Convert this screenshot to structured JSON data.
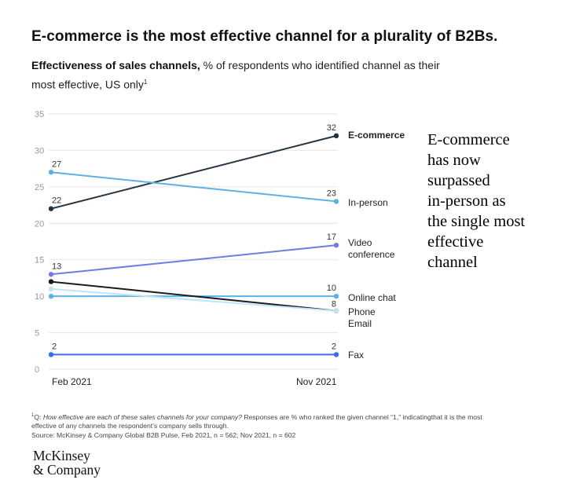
{
  "title": "E-commerce is the most effective channel for a plurality of B2Bs.",
  "subtitle": {
    "bold": "Effectiveness of sales channels,",
    "rest": " % of respondents who identified channel as their most effective, US only",
    "note_marker": "1"
  },
  "callout": {
    "lines": [
      "E-commerce",
      "has now",
      "surpassed",
      "in-person as",
      "the single most",
      "effective",
      "channel"
    ]
  },
  "footnote": {
    "marker": "1",
    "q_prefix": "Q: ",
    "question": "How effective are each of these sales channels for your company?",
    "line1_rest": " Responses are % who ranked the given channel “1,” indicatingthat it is the most",
    "line2": "effective of any channels the respondent’s company sells through.",
    "source": "Source: McKinsey & Company Global B2B Pulse, Feb 2021, n = 562; Nov 2021, n = 602"
  },
  "logo": {
    "line1": "McKinsey",
    "line2": "& Company"
  },
  "colors": {
    "axis_text": "#999999",
    "grid": "#e6e6e6",
    "e_commerce": "#243340",
    "in_person": "#5fb2e0",
    "video_conference": "#6c7fe0",
    "online_chat": "#5ab3e6",
    "phone": "#1b1b1b",
    "email": "#bfe3f7",
    "fax": "#3d6ee6"
  },
  "chart_data": {
    "type": "line",
    "title": "Effectiveness of sales channels, % of respondents who identified channel as their most effective, US only",
    "xlabel": "",
    "ylabel": "",
    "x": [
      "Feb 2021",
      "Nov 2021"
    ],
    "ylim": [
      0,
      35
    ],
    "yticks": [
      0,
      5,
      10,
      15,
      20,
      25,
      30,
      35
    ],
    "grid": true,
    "legend": "end-of-line labels on the right",
    "series": [
      {
        "name": "E-commerce",
        "values": [
          22,
          32
        ],
        "color": "#243340",
        "start_label": "22",
        "end_label": "32",
        "bold": true
      },
      {
        "name": "In-person",
        "values": [
          27,
          23
        ],
        "color": "#5fb2e0",
        "start_label": "27",
        "end_label": "23"
      },
      {
        "name": "Video conference",
        "values": [
          13,
          17
        ],
        "color": "#6c7fe0",
        "start_label": "13",
        "end_label": "17"
      },
      {
        "name": "Online chat",
        "values": [
          10,
          10
        ],
        "color": "#5ab3e6",
        "start_label": "",
        "end_label": "10"
      },
      {
        "name": "Phone",
        "values": [
          12,
          8
        ],
        "color": "#1b1b1b",
        "start_label": "",
        "end_label": "8"
      },
      {
        "name": "Email",
        "values": [
          11,
          8
        ],
        "color": "#bfe3f7",
        "start_label": "",
        "end_label": ""
      },
      {
        "name": "Fax",
        "values": [
          2,
          2
        ],
        "color": "#3d6ee6",
        "start_label": "2",
        "end_label": "2"
      }
    ]
  }
}
